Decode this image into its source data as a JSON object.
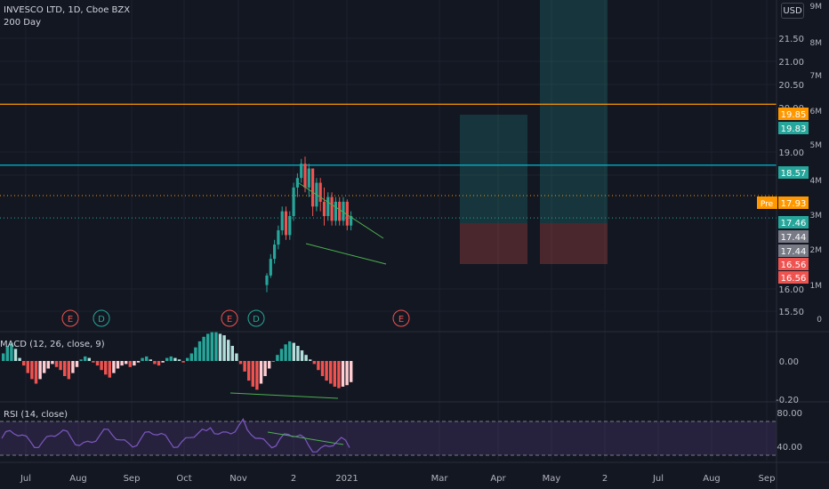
{
  "header": {
    "symbol": "INVESCO LTD, 1D, Cboe BZX",
    "indicator_1": "200 Day",
    "currency": "USD"
  },
  "macd_label": "MACD (12, 26, close, 9)",
  "rsi_label": "RSI (14, close)",
  "colors": {
    "bg": "#131722",
    "up": "#26a69a",
    "down": "#ef5350",
    "orange": "#ff9800",
    "cyan": "#00bcd4",
    "rsi_line": "#7e57c2",
    "trend": "#4caf50"
  },
  "chart_data": {
    "type": "candlestick",
    "price_axis": {
      "ticks": [
        "21.50",
        "21.00",
        "20.50",
        "20.00",
        "19.00",
        "18.50",
        "16.00",
        "15.50"
      ],
      "range": [
        15.3,
        22.0
      ]
    },
    "volume_axis": {
      "ticks": [
        "9M",
        "8M",
        "7M",
        "6M",
        "5M",
        "4M",
        "3M",
        "2M",
        "1M",
        "0"
      ]
    },
    "macd_axis": {
      "ticks": [
        "0.00",
        "-0.20"
      ]
    },
    "rsi_axis": {
      "ticks": [
        "80.00",
        "40.00"
      ]
    },
    "time_axis": [
      "Jul",
      "Aug",
      "Sep",
      "Oct",
      "Nov",
      "2",
      "2021",
      "Mar",
      "Apr",
      "May",
      "2",
      "Jul",
      "Aug",
      "Sep"
    ],
    "price_badges": [
      {
        "value": "19.85",
        "color": "#ff9800"
      },
      {
        "value": "19.83",
        "color": "#26a69a"
      },
      {
        "value": "18.57",
        "color": "#26a69a"
      },
      {
        "value": "17.93",
        "color": "#ff9800",
        "prefix": "Pre"
      },
      {
        "value": "17.46",
        "color": "#26a69a"
      },
      {
        "value": "17.44",
        "color": "#787b86"
      },
      {
        "value": "17.44",
        "color": "#787b86"
      },
      {
        "value": "16.56",
        "color": "#ef5350"
      },
      {
        "value": "16.56",
        "color": "#ef5350"
      }
    ],
    "horizontal_lines": [
      {
        "price": 19.85,
        "style": "solid",
        "color": "#ff9800"
      },
      {
        "price": 18.57,
        "style": "solid",
        "color": "#00bcd4"
      },
      {
        "price": 17.93,
        "style": "dotted",
        "color": "#ff9800"
      },
      {
        "price": 17.46,
        "style": "dotted",
        "color": "#26a69a"
      }
    ],
    "event_markers": [
      "E",
      "D",
      "E",
      "D",
      "E"
    ],
    "candles": [
      {
        "o": 16.05,
        "h": 16.3,
        "l": 15.9,
        "c": 16.25
      },
      {
        "o": 16.25,
        "h": 16.7,
        "l": 16.2,
        "c": 16.6
      },
      {
        "o": 16.6,
        "h": 17.0,
        "l": 16.5,
        "c": 16.9
      },
      {
        "o": 16.9,
        "h": 17.3,
        "l": 16.8,
        "c": 17.2
      },
      {
        "o": 17.2,
        "h": 17.7,
        "l": 17.1,
        "c": 17.6
      },
      {
        "o": 17.6,
        "h": 17.7,
        "l": 17.0,
        "c": 17.1
      },
      {
        "o": 17.1,
        "h": 17.6,
        "l": 17.0,
        "c": 17.5
      },
      {
        "o": 17.5,
        "h": 18.2,
        "l": 17.4,
        "c": 18.1
      },
      {
        "o": 18.1,
        "h": 18.4,
        "l": 17.9,
        "c": 18.3
      },
      {
        "o": 18.3,
        "h": 18.7,
        "l": 18.2,
        "c": 18.6
      },
      {
        "o": 18.6,
        "h": 18.75,
        "l": 18.0,
        "c": 18.1
      },
      {
        "o": 18.1,
        "h": 18.6,
        "l": 17.9,
        "c": 18.5
      },
      {
        "o": 18.5,
        "h": 18.5,
        "l": 17.5,
        "c": 17.7
      },
      {
        "o": 17.7,
        "h": 18.3,
        "l": 17.6,
        "c": 18.2
      },
      {
        "o": 18.2,
        "h": 18.3,
        "l": 17.6,
        "c": 17.8
      },
      {
        "o": 17.8,
        "h": 18.1,
        "l": 17.3,
        "c": 17.5
      },
      {
        "o": 17.5,
        "h": 18.0,
        "l": 17.4,
        "c": 17.9
      },
      {
        "o": 17.9,
        "h": 18.0,
        "l": 17.3,
        "c": 17.4
      },
      {
        "o": 17.4,
        "h": 17.9,
        "l": 17.3,
        "c": 17.8
      },
      {
        "o": 17.8,
        "h": 17.9,
        "l": 17.3,
        "c": 17.4
      },
      {
        "o": 17.4,
        "h": 17.9,
        "l": 17.3,
        "c": 17.8
      },
      {
        "o": 17.8,
        "h": 17.85,
        "l": 17.2,
        "c": 17.3
      },
      {
        "o": 17.3,
        "h": 17.6,
        "l": 17.2,
        "c": 17.5
      }
    ],
    "macd_histogram": [
      0.05,
      0.1,
      0.12,
      0.08,
      0.02,
      -0.03,
      -0.08,
      -0.12,
      -0.15,
      -0.12,
      -0.08,
      -0.05,
      -0.02,
      -0.04,
      -0.06,
      -0.1,
      -0.12,
      -0.08,
      -0.04,
      0.01,
      0.03,
      0.02,
      -0.01,
      -0.03,
      -0.06,
      -0.09,
      -0.11,
      -0.08,
      -0.05,
      -0.03,
      -0.02,
      -0.04,
      -0.03,
      -0.01,
      0.02,
      0.03,
      0.01,
      -0.02,
      -0.03,
      -0.01,
      0.02,
      0.03,
      0.02,
      0.01,
      -0.01,
      0.02,
      0.05,
      0.09,
      0.13,
      0.16,
      0.18,
      0.19,
      0.19,
      0.18,
      0.17,
      0.14,
      0.1,
      0.05,
      -0.02,
      -0.07,
      -0.13,
      -0.17,
      -0.19,
      -0.15,
      -0.1,
      -0.05,
      0.0,
      0.04,
      0.08,
      0.11,
      0.13,
      0.12,
      0.1,
      0.07,
      0.04,
      0.01,
      -0.02,
      -0.06,
      -0.1,
      -0.13,
      -0.15,
      -0.17,
      -0.18,
      -0.17,
      -0.16,
      -0.14
    ]
  }
}
